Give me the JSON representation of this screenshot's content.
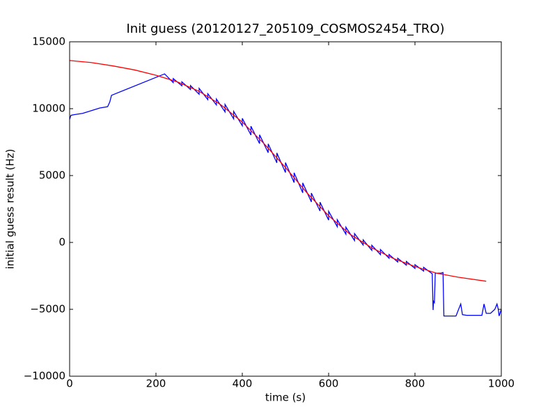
{
  "chart_data": {
    "type": "line",
    "title": "Init guess (20120127_205109_COSMOS2454_TRO)",
    "x_label": "time (s)",
    "y_label": "initial guess result (Hz)",
    "xlim": [
      0,
      1000
    ],
    "xticks": [
      0,
      200,
      400,
      600,
      800,
      1000
    ],
    "ylim": [
      -10000,
      15000
    ],
    "yticks": [
      {
        "value": -10000,
        "label": "−10000"
      },
      {
        "value": -5000,
        "label": "−5000"
      },
      0,
      5000,
      10000,
      15000
    ],
    "grid": false,
    "series": [
      {
        "color": "#0000ff",
        "x": [
          0,
          3,
          10,
          30,
          50,
          70,
          88,
          93,
          97,
          220,
          240,
          240,
          260,
          260,
          280,
          280,
          300,
          300,
          320,
          320,
          340,
          340,
          360,
          360,
          380,
          380,
          400,
          400,
          420,
          420,
          440,
          440,
          460,
          460,
          480,
          480,
          500,
          500,
          520,
          520,
          540,
          540,
          560,
          560,
          580,
          580,
          600,
          600,
          620,
          620,
          640,
          640,
          660,
          660,
          680,
          680,
          700,
          700,
          720,
          720,
          740,
          740,
          760,
          760,
          780,
          780,
          800,
          800,
          820,
          820,
          840,
          842,
          843,
          845,
          847,
          860,
          865,
          867,
          880,
          895,
          906,
          910,
          920,
          940,
          955,
          960,
          965,
          975,
          985,
          990,
          993,
          995,
          1000
        ],
        "values": [
          9200,
          9500,
          9550,
          9650,
          9850,
          10050,
          10150,
          10500,
          11000,
          12600,
          11950,
          12250,
          11710,
          12010,
          11430,
          11730,
          11080,
          11520,
          10680,
          11120,
          10280,
          10720,
          9760,
          10320,
          9240,
          9800,
          8720,
          9280,
          8030,
          8690,
          7390,
          8050,
          6710,
          7370,
          5950,
          6690,
          5230,
          5970,
          4470,
          5210,
          3710,
          4450,
          3030,
          3690,
          2350,
          3010,
          1670,
          2330,
          1180,
          1700,
          620,
          1140,
          140,
          660,
          -190,
          190,
          -590,
          -210,
          -910,
          -530,
          -1180,
          -900,
          -1460,
          -1180,
          -1700,
          -1420,
          -1940,
          -1660,
          -2140,
          -1860,
          -2340,
          -5050,
          -4400,
          -4500,
          -2300,
          -2300,
          -2250,
          -5500,
          -5500,
          -5500,
          -4600,
          -5400,
          -5450,
          -5450,
          -5450,
          -4600,
          -5300,
          -5300,
          -5000,
          -4600,
          -5000,
          -5500,
          -5000
        ]
      },
      {
        "color": "#ff0000",
        "x": [
          0,
          50,
          100,
          150,
          200,
          250,
          300,
          350,
          400,
          450,
          500,
          550,
          600,
          650,
          700,
          750,
          800,
          850,
          900,
          965
        ],
        "values": [
          13600,
          13450,
          13200,
          12900,
          12500,
          12000,
          11300,
          10300,
          9000,
          7400,
          5600,
          3700,
          2000,
          600,
          -400,
          -1200,
          -1800,
          -2300,
          -2600,
          -2900
        ]
      }
    ]
  }
}
